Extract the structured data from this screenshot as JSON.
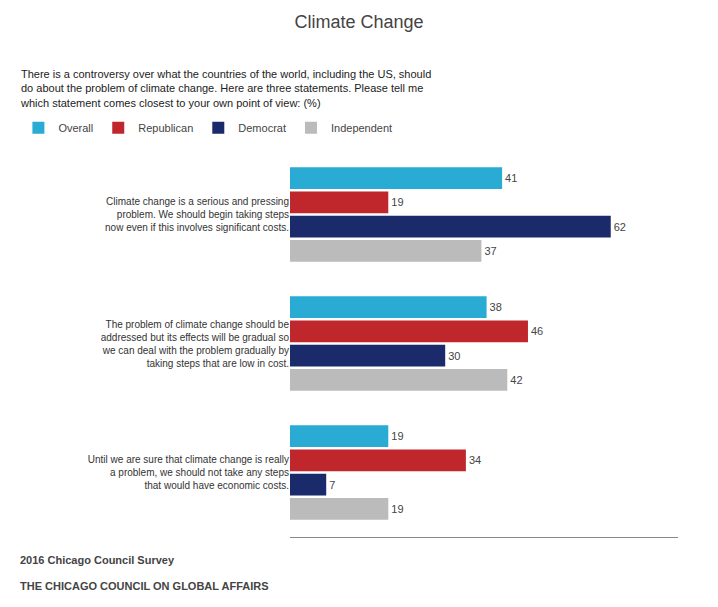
{
  "chart_data": {
    "type": "bar",
    "orientation": "horizontal",
    "title": "Climate Change",
    "subtitle": "There is a controversy over what the countries of the world, including the US, should\ndo about the problem of climate change. Here are three statements. Please tell me\nwhich statement comes closest to your own point of view: (%)",
    "categories": [
      "Climate change is a serious and pressing\nproblem. We should begin taking steps\nnow even if this involves significant costs.",
      "The problem of climate change should be\naddressed but its effects will be gradual so\nwe can deal with the problem gradually by\ntaking steps that are low in cost.",
      "Until we are sure that climate change is really\na problem, we should not take any steps\nthat would have economic costs."
    ],
    "series": [
      {
        "name": "Overall",
        "color": "#29ABD4",
        "values": [
          41,
          38,
          19
        ]
      },
      {
        "name": "Republican",
        "color": "#C0272D",
        "values": [
          19,
          46,
          34
        ]
      },
      {
        "name": "Democrat",
        "color": "#1B2A6B",
        "values": [
          62,
          30,
          7
        ]
      },
      {
        "name": "Independent",
        "color": "#BBBBBB",
        "values": [
          37,
          42,
          19
        ]
      }
    ],
    "xlim": [
      0,
      75
    ],
    "tick_labels": "y",
    "grid": false,
    "data_labels": true,
    "legend": "top left",
    "annotations": [
      "2016 Chicago Council Survey",
      "THE CHICAGO COUNCIL ON GLOBAL AFFAIRS"
    ]
  }
}
